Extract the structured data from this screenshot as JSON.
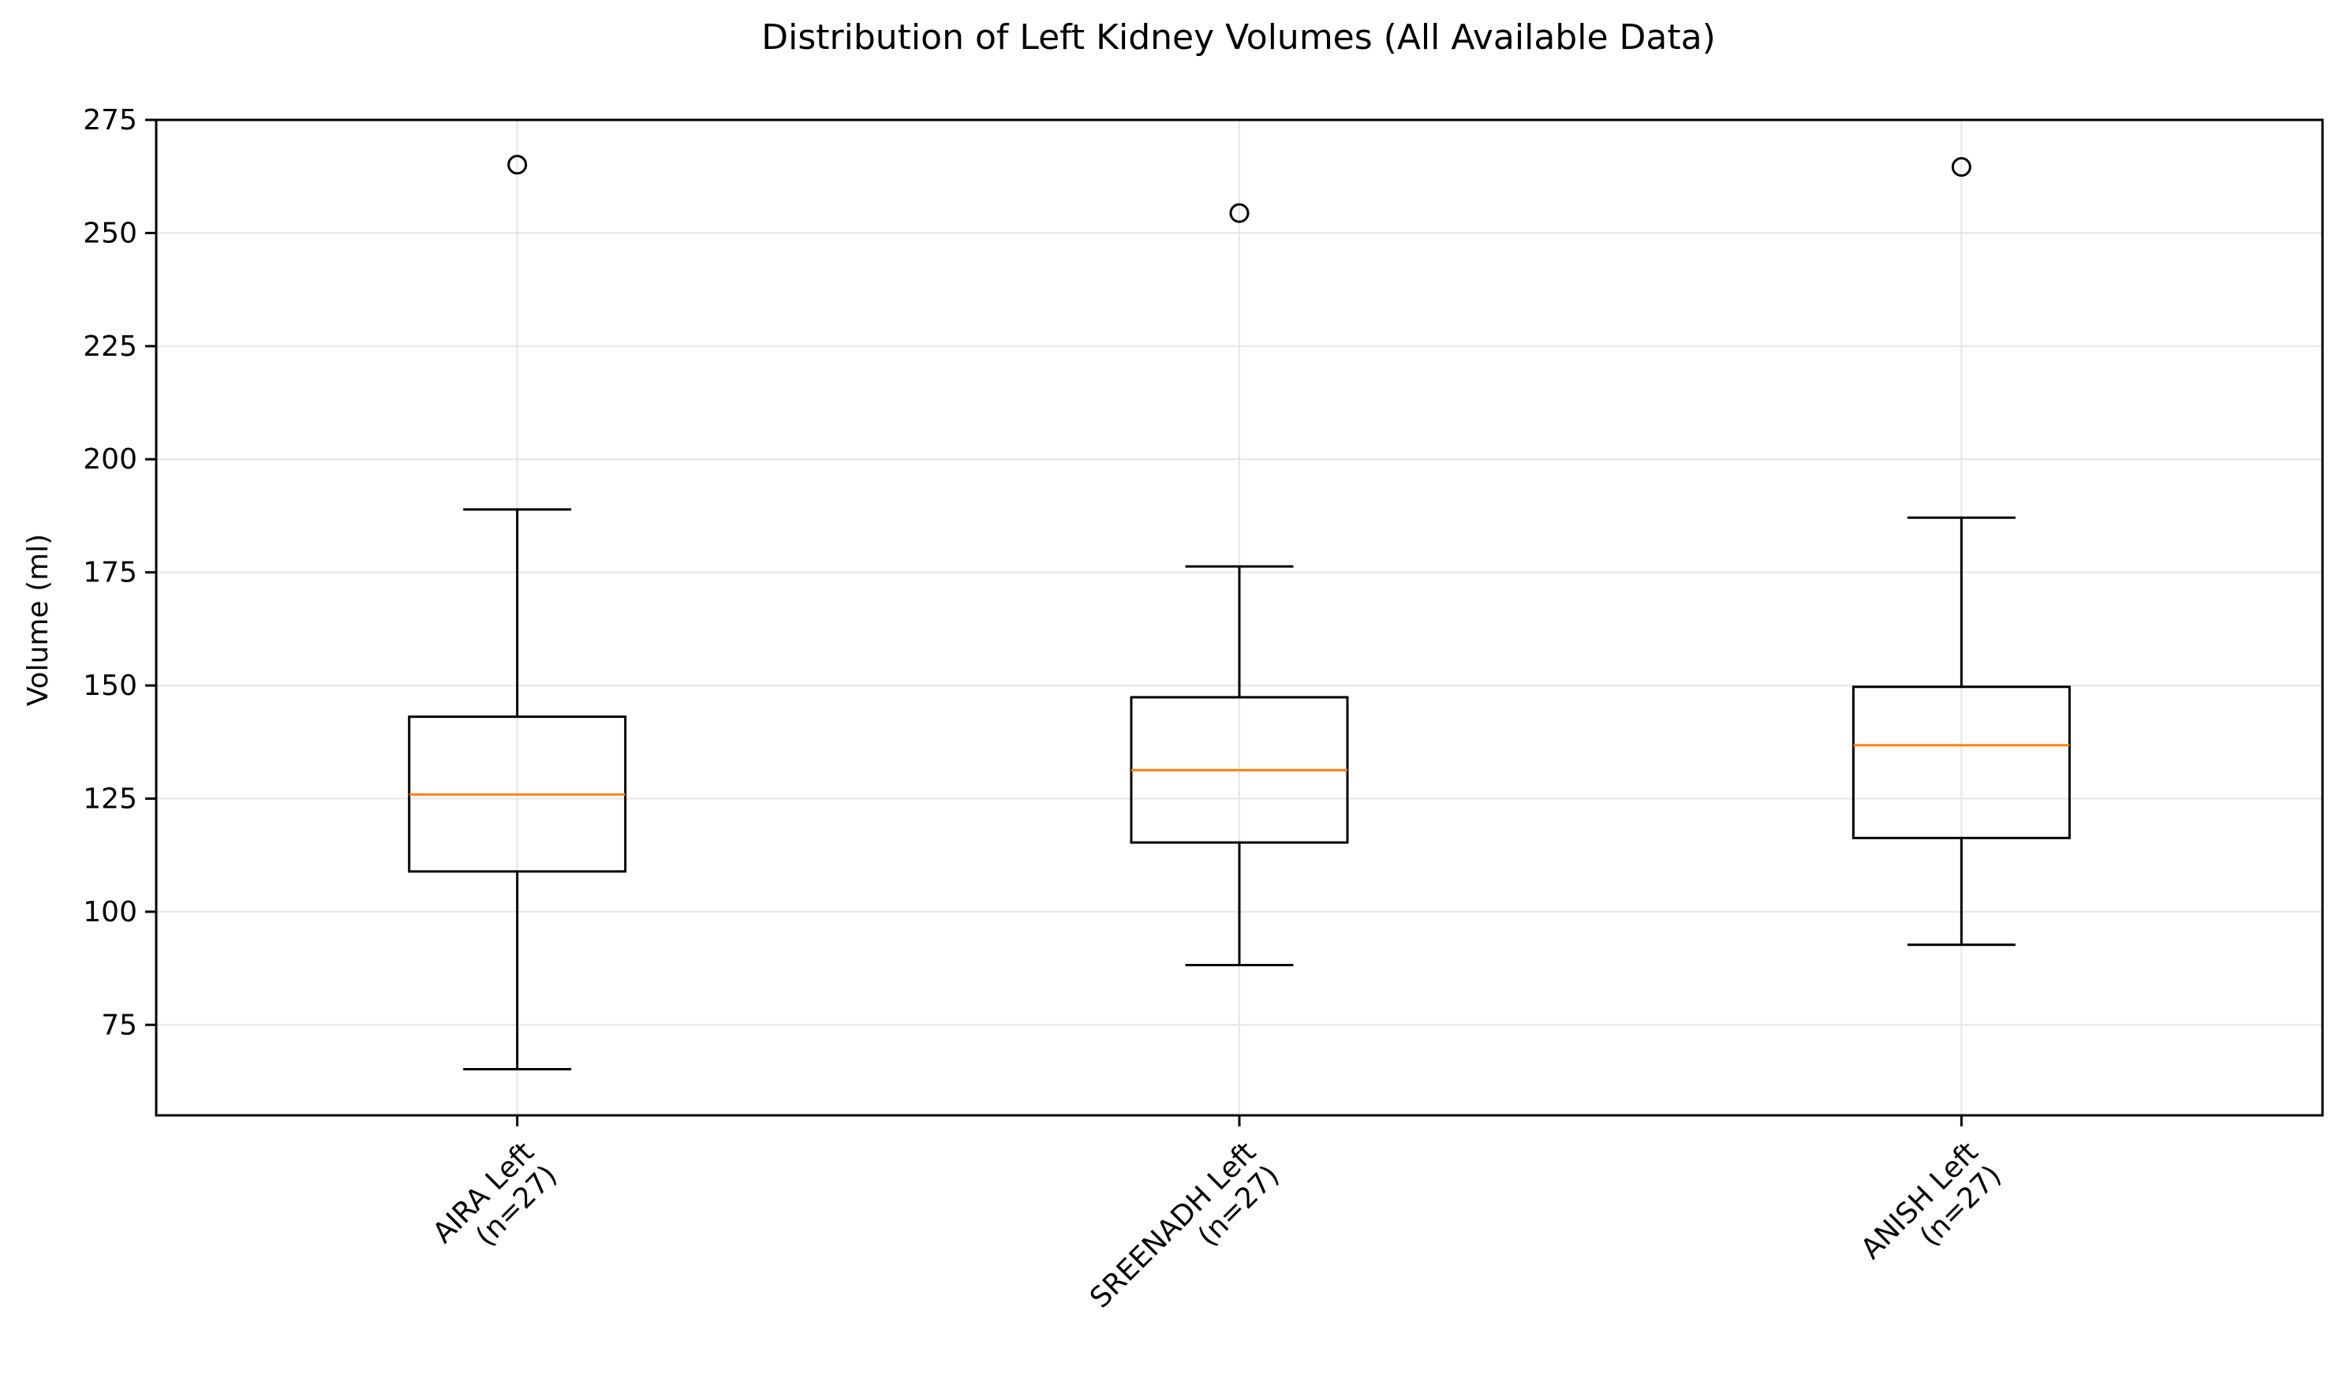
{
  "chart_data": {
    "type": "box",
    "title": "Distribution of Left Kidney Volumes (All Available Data)",
    "xlabel": "",
    "ylabel": "Volume (ml)",
    "ylim": [
      55,
      275
    ],
    "yticks": [
      75,
      100,
      125,
      150,
      175,
      200,
      225,
      250,
      275
    ],
    "grid": true,
    "categories": [
      {
        "line1": "AIRA Left",
        "line2": "(n=27)"
      },
      {
        "line1": "SREENADH Left",
        "line2": "(n=27)"
      },
      {
        "line1": "ANISH Left",
        "line2": "(n=27)"
      }
    ],
    "boxes": [
      {
        "whisker_low": 65.2,
        "q1": 108.9,
        "median": 125.9,
        "q3": 143.1,
        "whisker_high": 188.9,
        "outliers": [
          265.1
        ]
      },
      {
        "whisker_low": 88.2,
        "q1": 115.3,
        "median": 131.3,
        "q3": 147.4,
        "whisker_high": 176.3,
        "outliers": [
          254.4
        ]
      },
      {
        "whisker_low": 92.7,
        "q1": 116.3,
        "median": 136.8,
        "q3": 149.7,
        "whisker_high": 187.1,
        "outliers": [
          264.6
        ]
      }
    ],
    "colors": {
      "box": "#000000",
      "median": "#ff7f0e",
      "grid": "#e6e6e6"
    }
  }
}
